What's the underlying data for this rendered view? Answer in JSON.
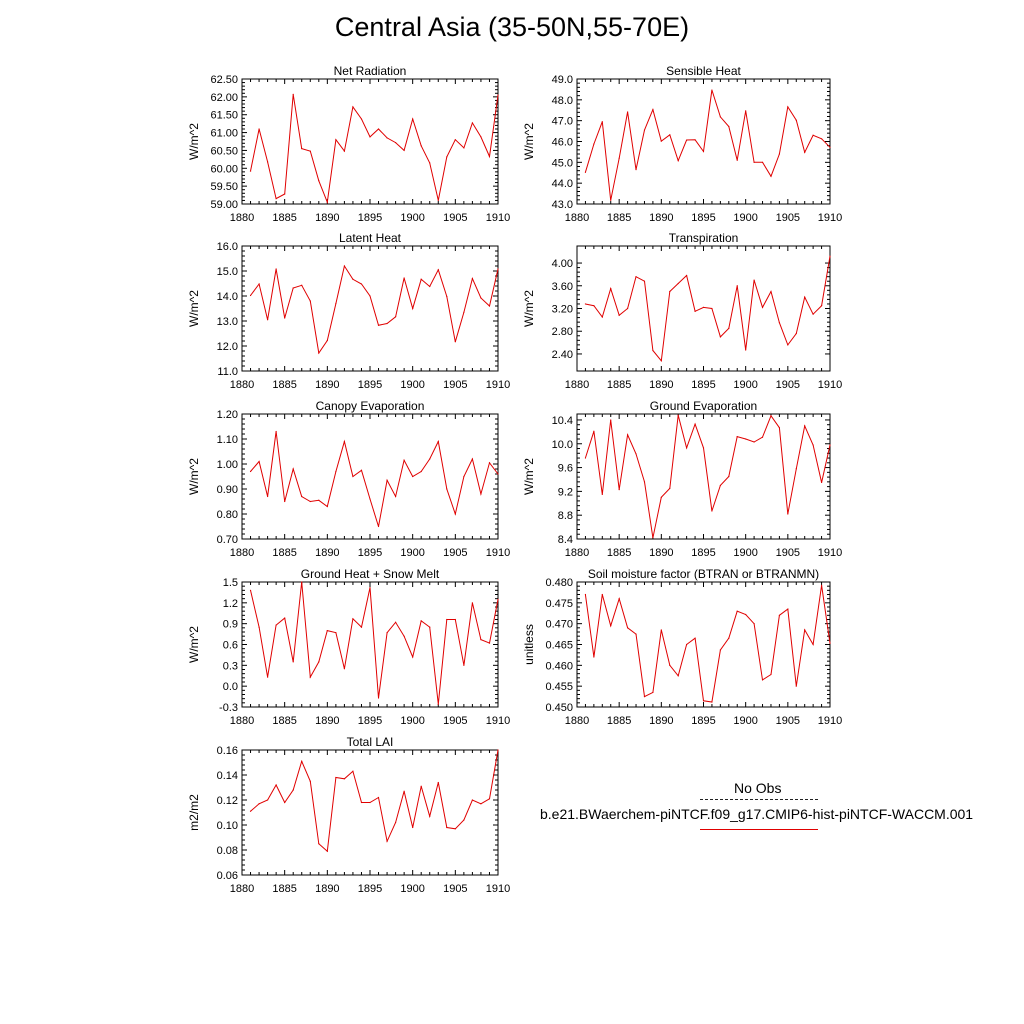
{
  "title": "Central Asia (35-50N,55-70E)",
  "legend": {
    "obs_label": "No Obs",
    "case_label": "b.e21.BWaerchem-piNTCF.f09_g17.CMIP6-hist-piNTCF-WACCM.001",
    "case_color": "#e00000",
    "obs_color": "#222222"
  },
  "chart_data": [
    {
      "type": "line",
      "title": "Net Radiation",
      "ylabel": "W/m^2",
      "xlim": [
        1880,
        1910
      ],
      "ylim": [
        59.0,
        62.5
      ],
      "yticks": [
        "59.00",
        "59.50",
        "60.00",
        "60.50",
        "61.00",
        "61.50",
        "62.00",
        "62.50"
      ],
      "xticks": [
        "1880",
        "1885",
        "1890",
        "1895",
        "1900",
        "1905",
        "1910"
      ],
      "x": [
        1881,
        1882,
        1883,
        1884,
        1885,
        1886,
        1887,
        1888,
        1889,
        1890,
        1891,
        1892,
        1893,
        1894,
        1895,
        1896,
        1897,
        1898,
        1899,
        1900,
        1901,
        1902,
        1903,
        1904,
        1905,
        1906,
        1907,
        1908,
        1909,
        1910
      ],
      "values": [
        59.92,
        61.1,
        60.18,
        59.15,
        59.28,
        62.07,
        60.55,
        60.48,
        59.65,
        59.05,
        60.8,
        60.48,
        61.72,
        61.38,
        60.88,
        61.1,
        60.85,
        60.72,
        60.5,
        61.38,
        60.63,
        60.15,
        59.1,
        60.32,
        60.8,
        60.57,
        61.27,
        60.88,
        60.33,
        62.05
      ]
    },
    {
      "type": "line",
      "title": "Sensible Heat",
      "ylabel": "W/m^2",
      "xlim": [
        1880,
        1910
      ],
      "ylim": [
        43.0,
        49.0
      ],
      "yticks": [
        "43.0",
        "44.0",
        "45.0",
        "46.0",
        "47.0",
        "48.0",
        "49.0"
      ],
      "xticks": [
        "1880",
        "1885",
        "1890",
        "1895",
        "1900",
        "1905",
        "1910"
      ],
      "x": [
        1881,
        1882,
        1883,
        1884,
        1885,
        1886,
        1887,
        1888,
        1889,
        1890,
        1891,
        1892,
        1893,
        1894,
        1895,
        1896,
        1897,
        1898,
        1899,
        1900,
        1901,
        1902,
        1903,
        1904,
        1905,
        1906,
        1907,
        1908,
        1909,
        1910
      ],
      "values": [
        44.52,
        45.88,
        46.95,
        43.18,
        45.2,
        47.42,
        44.65,
        46.55,
        47.53,
        46.02,
        46.32,
        45.08,
        46.07,
        46.08,
        45.52,
        48.47,
        47.18,
        46.72,
        45.1,
        47.47,
        45.0,
        45.0,
        44.33,
        45.4,
        47.66,
        47.02,
        45.48,
        46.3,
        46.13,
        45.72
      ]
    },
    {
      "type": "line",
      "title": "Latent Heat",
      "ylabel": "W/m^2",
      "xlim": [
        1880,
        1910
      ],
      "ylim": [
        11.0,
        16.0
      ],
      "yticks": [
        "11.0",
        "12.0",
        "13.0",
        "14.0",
        "15.0",
        "16.0"
      ],
      "xticks": [
        "1880",
        "1885",
        "1890",
        "1895",
        "1900",
        "1905",
        "1910"
      ],
      "x": [
        1881,
        1882,
        1883,
        1884,
        1885,
        1886,
        1887,
        1888,
        1889,
        1890,
        1891,
        1892,
        1893,
        1894,
        1895,
        1896,
        1897,
        1898,
        1899,
        1900,
        1901,
        1902,
        1903,
        1904,
        1905,
        1906,
        1907,
        1908,
        1909,
        1910
      ],
      "values": [
        14.02,
        14.48,
        13.05,
        15.08,
        13.12,
        14.32,
        14.43,
        13.8,
        11.72,
        12.22,
        13.7,
        15.2,
        14.67,
        14.48,
        14.0,
        12.83,
        12.9,
        13.17,
        14.72,
        13.5,
        14.67,
        14.38,
        15.05,
        13.98,
        12.17,
        13.35,
        14.7,
        13.92,
        13.6,
        15.08
      ]
    },
    {
      "type": "line",
      "title": "Transpiration",
      "ylabel": "W/m^2",
      "xlim": [
        1880,
        1910
      ],
      "ylim": [
        2.1,
        4.3
      ],
      "yticks": [
        "2.40",
        "2.80",
        "3.20",
        "3.60",
        "4.00"
      ],
      "ytick_values": [
        2.4,
        2.8,
        3.2,
        3.6,
        4.0
      ],
      "xticks": [
        "1880",
        "1885",
        "1890",
        "1895",
        "1900",
        "1905",
        "1910"
      ],
      "x": [
        1881,
        1882,
        1883,
        1884,
        1885,
        1886,
        1887,
        1888,
        1889,
        1890,
        1891,
        1892,
        1893,
        1894,
        1895,
        1896,
        1897,
        1898,
        1899,
        1900,
        1901,
        1902,
        1903,
        1904,
        1905,
        1906,
        1907,
        1908,
        1909,
        1910
      ],
      "values": [
        3.28,
        3.25,
        3.05,
        3.55,
        3.08,
        3.2,
        3.76,
        3.68,
        2.46,
        2.28,
        3.5,
        3.64,
        3.78,
        3.15,
        3.22,
        3.2,
        2.7,
        2.85,
        3.6,
        2.47,
        3.7,
        3.22,
        3.5,
        2.95,
        2.56,
        2.76,
        3.4,
        3.1,
        3.25,
        4.12
      ]
    },
    {
      "type": "line",
      "title": "Canopy Evaporation",
      "ylabel": "W/m^2",
      "xlim": [
        1880,
        1910
      ],
      "ylim": [
        0.7,
        1.2
      ],
      "yticks": [
        "0.70",
        "0.80",
        "0.90",
        "1.00",
        "1.10",
        "1.20"
      ],
      "xticks": [
        "1880",
        "1885",
        "1890",
        "1895",
        "1900",
        "1905",
        "1910"
      ],
      "x": [
        1881,
        1882,
        1883,
        1884,
        1885,
        1886,
        1887,
        1888,
        1889,
        1890,
        1891,
        1892,
        1893,
        1894,
        1895,
        1896,
        1897,
        1898,
        1899,
        1900,
        1901,
        1902,
        1903,
        1904,
        1905,
        1906,
        1907,
        1908,
        1909,
        1910
      ],
      "values": [
        0.97,
        1.01,
        0.87,
        1.13,
        0.85,
        0.98,
        0.87,
        0.85,
        0.855,
        0.83,
        0.97,
        1.09,
        0.95,
        0.975,
        0.86,
        0.75,
        0.935,
        0.87,
        1.015,
        0.95,
        0.97,
        1.02,
        1.09,
        0.9,
        0.8,
        0.95,
        1.02,
        0.88,
        1.005,
        0.96
      ]
    },
    {
      "type": "line",
      "title": "Ground Evaporation",
      "ylabel": "W/m^2",
      "xlim": [
        1880,
        1910
      ],
      "ylim": [
        8.4,
        10.5
      ],
      "yticks": [
        "8.4",
        "8.8",
        "9.2",
        "9.6",
        "10.0",
        "10.4"
      ],
      "xticks": [
        "1880",
        "1885",
        "1890",
        "1895",
        "1900",
        "1905",
        "1910"
      ],
      "x": [
        1881,
        1882,
        1883,
        1884,
        1885,
        1886,
        1887,
        1888,
        1889,
        1890,
        1891,
        1892,
        1893,
        1894,
        1895,
        1896,
        1897,
        1898,
        1899,
        1900,
        1901,
        1902,
        1903,
        1904,
        1905,
        1906,
        1907,
        1908,
        1909,
        1910
      ],
      "values": [
        9.76,
        10.21,
        9.15,
        10.4,
        9.23,
        10.15,
        9.83,
        9.36,
        8.42,
        9.1,
        9.25,
        10.48,
        9.93,
        10.33,
        9.93,
        8.87,
        9.3,
        9.45,
        10.12,
        10.08,
        10.03,
        10.11,
        10.47,
        10.27,
        8.82,
        9.58,
        10.3,
        9.98,
        9.35,
        9.98
      ]
    },
    {
      "type": "line",
      "title": "Ground Heat + Snow Melt",
      "ylabel": "W/m^2",
      "xlim": [
        1880,
        1910
      ],
      "ylim": [
        -0.3,
        1.5
      ],
      "yticks": [
        "-0.3",
        "0.0",
        "0.3",
        "0.6",
        "0.9",
        "1.2",
        "1.5"
      ],
      "xticks": [
        "1880",
        "1885",
        "1890",
        "1895",
        "1900",
        "1905",
        "1910"
      ],
      "x": [
        1881,
        1882,
        1883,
        1884,
        1885,
        1886,
        1887,
        1888,
        1889,
        1890,
        1891,
        1892,
        1893,
        1894,
        1895,
        1896,
        1897,
        1898,
        1899,
        1900,
        1901,
        1902,
        1903,
        1904,
        1905,
        1906,
        1907,
        1908,
        1909,
        1910
      ],
      "values": [
        1.38,
        0.85,
        0.13,
        0.88,
        0.98,
        0.35,
        1.5,
        0.13,
        0.35,
        0.8,
        0.77,
        0.25,
        0.97,
        0.85,
        1.42,
        -0.17,
        0.77,
        0.92,
        0.72,
        0.42,
        0.94,
        0.85,
        -0.26,
        0.96,
        0.96,
        0.3,
        1.2,
        0.67,
        0.62,
        1.25
      ]
    },
    {
      "type": "line",
      "title": "Soil moisture factor (BTRAN or BTRANMN)",
      "ylabel": "unitless",
      "xlim": [
        1880,
        1910
      ],
      "ylim": [
        0.45,
        0.48
      ],
      "yticks": [
        "0.450",
        "0.455",
        "0.460",
        "0.465",
        "0.470",
        "0.475",
        "0.480"
      ],
      "xticks": [
        "1880",
        "1885",
        "1890",
        "1895",
        "1900",
        "1905",
        "1910"
      ],
      "x": [
        1881,
        1882,
        1883,
        1884,
        1885,
        1886,
        1887,
        1888,
        1889,
        1890,
        1891,
        1892,
        1893,
        1894,
        1895,
        1896,
        1897,
        1898,
        1899,
        1900,
        1901,
        1902,
        1903,
        1904,
        1905,
        1906,
        1907,
        1908,
        1909,
        1910
      ],
      "values": [
        0.477,
        0.462,
        0.477,
        0.4695,
        0.476,
        0.469,
        0.4675,
        0.4525,
        0.4535,
        0.4685,
        0.46,
        0.4575,
        0.465,
        0.4665,
        0.4515,
        0.4512,
        0.4637,
        0.4665,
        0.473,
        0.4722,
        0.47,
        0.4565,
        0.4578,
        0.472,
        0.4735,
        0.455,
        0.4685,
        0.465,
        0.4792,
        0.4653
      ]
    },
    {
      "type": "line",
      "title": "Total LAI",
      "ylabel": "m2/m2",
      "xlim": [
        1880,
        1910
      ],
      "ylim": [
        0.06,
        0.16
      ],
      "yticks": [
        "0.06",
        "0.08",
        "0.10",
        "0.12",
        "0.14",
        "0.16"
      ],
      "xticks": [
        "1880",
        "1885",
        "1890",
        "1895",
        "1900",
        "1905",
        "1910"
      ],
      "x": [
        1881,
        1882,
        1883,
        1884,
        1885,
        1886,
        1887,
        1888,
        1889,
        1890,
        1891,
        1892,
        1893,
        1894,
        1895,
        1896,
        1897,
        1898,
        1899,
        1900,
        1901,
        1902,
        1903,
        1904,
        1905,
        1906,
        1907,
        1908,
        1909,
        1910
      ],
      "values": [
        0.111,
        0.117,
        0.12,
        0.132,
        0.118,
        0.128,
        0.151,
        0.135,
        0.085,
        0.079,
        0.138,
        0.137,
        0.143,
        0.118,
        0.118,
        0.122,
        0.087,
        0.102,
        0.127,
        0.098,
        0.131,
        0.107,
        0.134,
        0.098,
        0.097,
        0.104,
        0.12,
        0.117,
        0.121,
        0.16
      ]
    }
  ]
}
